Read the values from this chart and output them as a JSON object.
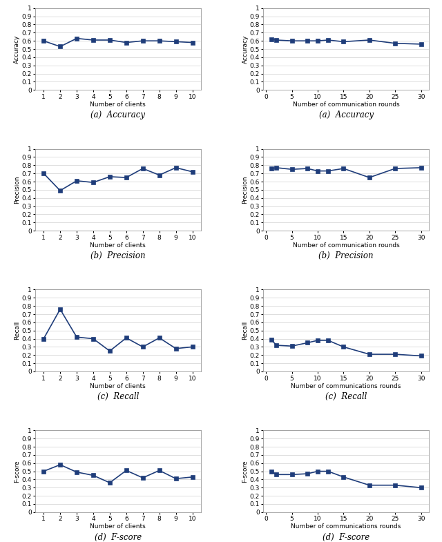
{
  "left_accuracy_x": [
    1,
    2,
    3,
    4,
    5,
    6,
    7,
    8,
    9,
    10
  ],
  "left_accuracy_y": [
    0.6,
    0.53,
    0.63,
    0.61,
    0.61,
    0.58,
    0.6,
    0.6,
    0.59,
    0.58
  ],
  "left_precision_x": [
    1,
    2,
    3,
    4,
    5,
    6,
    7,
    8,
    9,
    10
  ],
  "left_precision_y": [
    0.7,
    0.49,
    0.61,
    0.59,
    0.66,
    0.65,
    0.76,
    0.68,
    0.77,
    0.72
  ],
  "left_recall_x": [
    1,
    2,
    3,
    4,
    5,
    6,
    7,
    8,
    9,
    10
  ],
  "left_recall_y": [
    0.4,
    0.76,
    0.42,
    0.4,
    0.25,
    0.41,
    0.3,
    0.41,
    0.28,
    0.3
  ],
  "left_fscore_x": [
    1,
    2,
    3,
    4,
    5,
    6,
    7,
    8,
    9,
    10
  ],
  "left_fscore_y": [
    0.5,
    0.58,
    0.49,
    0.45,
    0.36,
    0.51,
    0.42,
    0.51,
    0.41,
    0.43
  ],
  "right_accuracy_x": [
    1,
    2,
    5,
    8,
    10,
    12,
    15,
    20,
    25,
    30
  ],
  "right_accuracy_y": [
    0.62,
    0.61,
    0.6,
    0.6,
    0.6,
    0.61,
    0.59,
    0.61,
    0.57,
    0.56
  ],
  "right_precision_x": [
    1,
    2,
    5,
    8,
    10,
    12,
    15,
    20,
    25,
    30
  ],
  "right_precision_y": [
    0.76,
    0.77,
    0.75,
    0.76,
    0.73,
    0.73,
    0.76,
    0.65,
    0.76,
    0.77
  ],
  "right_recall_x": [
    1,
    2,
    5,
    8,
    10,
    12,
    15,
    20,
    25,
    30
  ],
  "right_recall_y": [
    0.39,
    0.32,
    0.31,
    0.35,
    0.38,
    0.38,
    0.3,
    0.21,
    0.21,
    0.19
  ],
  "right_fscore_x": [
    1,
    2,
    5,
    8,
    10,
    12,
    15,
    20,
    25,
    30
  ],
  "right_fscore_y": [
    0.5,
    0.46,
    0.46,
    0.47,
    0.5,
    0.5,
    0.43,
    0.33,
    0.33,
    0.3
  ],
  "line_color": "#1f3d7a",
  "marker": "s",
  "marker_size": 4,
  "linewidth": 1.2,
  "left_xlabel": "Number of clients",
  "right_accuracy_xlabel": "Number of communication rounds",
  "right_precision_xlabel": "Number of communication rounds",
  "right_recall_xlabel": "Number of communications rounds",
  "right_fscore_xlabel": "Number of communications rounds",
  "left_accuracy_ylabel": "Accuracy",
  "left_precision_ylabel": "Precision",
  "left_recall_ylabel": "Recall",
  "left_fscore_ylabel": "F-score",
  "right_accuracy_ylabel": "Accuracy",
  "right_precision_ylabel": "Precision",
  "right_recall_ylabel": "Recall",
  "right_fscore_ylabel": "F-score",
  "caption_a_left": "(a)  Accuracy",
  "caption_b_left": "(b)  Precision",
  "caption_c_left": "(c)  Recall",
  "caption_d_left": "(d)  F-score",
  "caption_a_right": "(a)  Accuracy",
  "caption_b_right": "(b)  Precision",
  "caption_c_right": "(c)  Recall",
  "caption_d_right": "(d)  F-score",
  "ylim": [
    0,
    1
  ],
  "yticks": [
    0,
    0.1,
    0.2,
    0.3,
    0.4,
    0.5,
    0.6,
    0.7,
    0.8,
    0.9,
    1
  ],
  "ytick_labels": [
    "0",
    "0.1",
    "0.2",
    "0.3",
    "0.4",
    "0.5",
    "0.6",
    "0.7",
    "0.8",
    "0.9",
    "1"
  ],
  "left_xticks": [
    1,
    2,
    3,
    4,
    5,
    6,
    7,
    8,
    9,
    10
  ],
  "right_xticks": [
    0,
    5,
    10,
    15,
    20,
    25,
    30
  ],
  "xlabel_fontsize": 6.5,
  "ylabel_fontsize": 6.5,
  "tick_fontsize": 6.5,
  "caption_fontsize": 8.5,
  "grid_color": "#d0d0d0",
  "grid_linewidth": 0.5,
  "spine_color": "#999999"
}
